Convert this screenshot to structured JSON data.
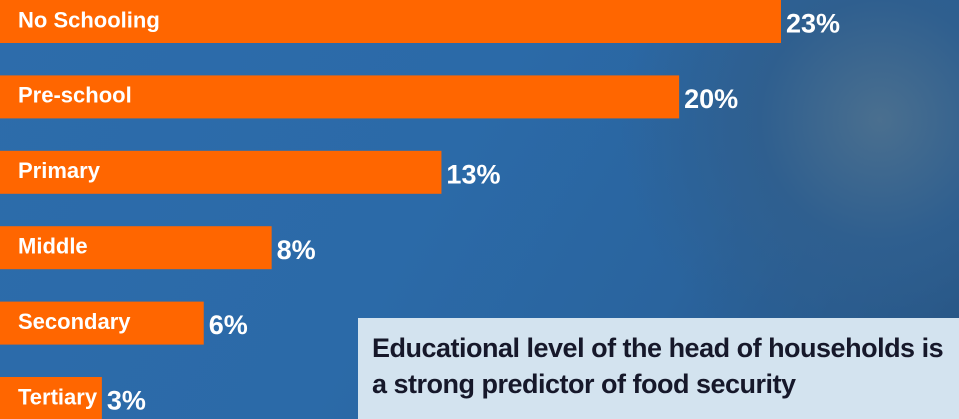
{
  "chart_data": {
    "type": "bar",
    "orientation": "horizontal",
    "title": "Educational level of the head of households is a strong predictor of food security",
    "categories": [
      "No Schooling",
      "Pre-school",
      "Primary",
      "Middle",
      "Secondary",
      "Tertiary"
    ],
    "values": [
      23,
      20,
      13,
      8,
      6,
      3
    ],
    "value_labels": [
      "23%",
      "20%",
      "13%",
      "8%",
      "6%",
      "3%"
    ],
    "color": "#ff6600"
  }
}
